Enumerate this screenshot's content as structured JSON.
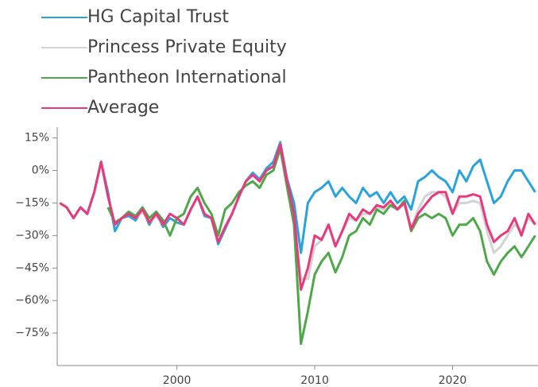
{
  "chart_data": {
    "type": "line",
    "x": [
      1991.5,
      1992,
      1992.5,
      1993,
      1993.5,
      1994,
      1994.5,
      1995,
      1995.5,
      1996,
      1996.5,
      1997,
      1997.5,
      1998,
      1998.5,
      1999,
      1999.5,
      2000,
      2000.5,
      2001,
      2001.5,
      2002,
      2002.5,
      2003,
      2003.5,
      2004,
      2004.5,
      2005,
      2005.5,
      2006,
      2006.5,
      2007,
      2007.5,
      2008,
      2008.5,
      2009,
      2009.5,
      2010,
      2010.5,
      2011,
      2011.5,
      2012,
      2012.5,
      2013,
      2013.5,
      2014,
      2014.5,
      2015,
      2015.5,
      2016,
      2016.5,
      2017,
      2017.5,
      2018,
      2018.5,
      2019,
      2019.5,
      2020,
      2020.5,
      2021,
      2021.5,
      2022,
      2022.5,
      2023,
      2023.5,
      2024,
      2024.5,
      2025,
      2025.5,
      2026
    ],
    "series": [
      {
        "name": "HG Capital Trust",
        "color": "#29a3dd",
        "values": [
          -15,
          -17,
          -22,
          -17,
          -20,
          -10,
          4,
          -10,
          -28,
          -22,
          -21,
          -23,
          -18,
          -25,
          -20,
          -26,
          -22,
          -24,
          -25,
          -18,
          -12,
          -21,
          -22,
          -34,
          -27,
          -20,
          -12,
          -5,
          -1,
          -4,
          1,
          4,
          13,
          -4,
          -15,
          -38,
          -15,
          -10,
          -8,
          -5,
          -12,
          -8,
          -12,
          -15,
          -8,
          -12,
          -10,
          -15,
          -10,
          -15,
          -12,
          -18,
          -5,
          -3,
          0,
          -3,
          -5,
          -10,
          0,
          -5,
          2,
          5,
          -5,
          -15,
          -12,
          -5,
          0,
          0,
          -5,
          -10
        ]
      },
      {
        "name": "Princess Private Equity",
        "color": "#d3d3d3",
        "values": [
          null,
          null,
          null,
          null,
          null,
          null,
          4,
          -12,
          -25,
          -22,
          -20,
          -22,
          -19,
          -24,
          -21,
          -25,
          -20,
          -22,
          -25,
          -18,
          -12,
          -20,
          -22,
          -33,
          -26,
          -20,
          -12,
          -5,
          -2,
          -5,
          0,
          2,
          12,
          -5,
          -25,
          -50,
          -50,
          -35,
          -32,
          -25,
          -35,
          -28,
          -22,
          -23,
          -20,
          -20,
          -17,
          -18,
          -14,
          -18,
          -15,
          -27,
          -18,
          -12,
          -10,
          -10,
          -12,
          -20,
          -15,
          -15,
          -14,
          -15,
          -28,
          -38,
          -35,
          -30,
          -25,
          -28,
          -22,
          -25
        ]
      },
      {
        "name": "Pantheon International",
        "color": "#4ea84a",
        "values": [
          null,
          null,
          null,
          null,
          null,
          null,
          null,
          -17,
          -24,
          -22,
          -19,
          -21,
          -17,
          -22,
          -19,
          -23,
          -30,
          -22,
          -20,
          -12,
          -8,
          -15,
          -20,
          -30,
          -18,
          -15,
          -10,
          -7,
          -5,
          -8,
          -2,
          0,
          10,
          -8,
          -25,
          -80,
          -65,
          -48,
          -42,
          -38,
          -47,
          -40,
          -30,
          -28,
          -22,
          -25,
          -18,
          -20,
          -16,
          -18,
          -14,
          -28,
          -22,
          -20,
          -22,
          -20,
          -22,
          -30,
          -25,
          -25,
          -22,
          -28,
          -42,
          -48,
          -42,
          -38,
          -35,
          -40,
          -35,
          -30
        ]
      },
      {
        "name": "Average",
        "color": "#e8397d",
        "values": [
          -15,
          -17,
          -22,
          -17,
          -20,
          -10,
          4,
          -12,
          -25,
          -22,
          -20,
          -22,
          -18,
          -24,
          -20,
          -25,
          -20,
          -22,
          -25,
          -18,
          -12,
          -20,
          -22,
          -33,
          -26,
          -20,
          -12,
          -5,
          -2,
          -5,
          0,
          2,
          12,
          -5,
          -20,
          -55,
          -45,
          -30,
          -32,
          -25,
          -35,
          -28,
          -20,
          -23,
          -18,
          -20,
          -16,
          -17,
          -14,
          -18,
          -15,
          -27,
          -20,
          -16,
          -12,
          -10,
          -10,
          -20,
          -12,
          -12,
          -11,
          -12,
          -25,
          -33,
          -30,
          -28,
          -22,
          -30,
          -20,
          -25
        ]
      }
    ],
    "xlim": [
      1991.2,
      2026.2
    ],
    "xticks": [
      2000,
      2010,
      2020
    ],
    "ylim": [
      -90,
      20
    ],
    "yticks": [
      {
        "value": 15,
        "label": "15%"
      },
      {
        "value": 0,
        "label": "0%"
      },
      {
        "value": -15,
        "label": "−15%"
      },
      {
        "value": -30,
        "label": "−30%"
      },
      {
        "value": -45,
        "label": "−45%"
      },
      {
        "value": -60,
        "label": "−60%"
      },
      {
        "value": -75,
        "label": "−75%"
      }
    ],
    "legend": "top-left"
  }
}
